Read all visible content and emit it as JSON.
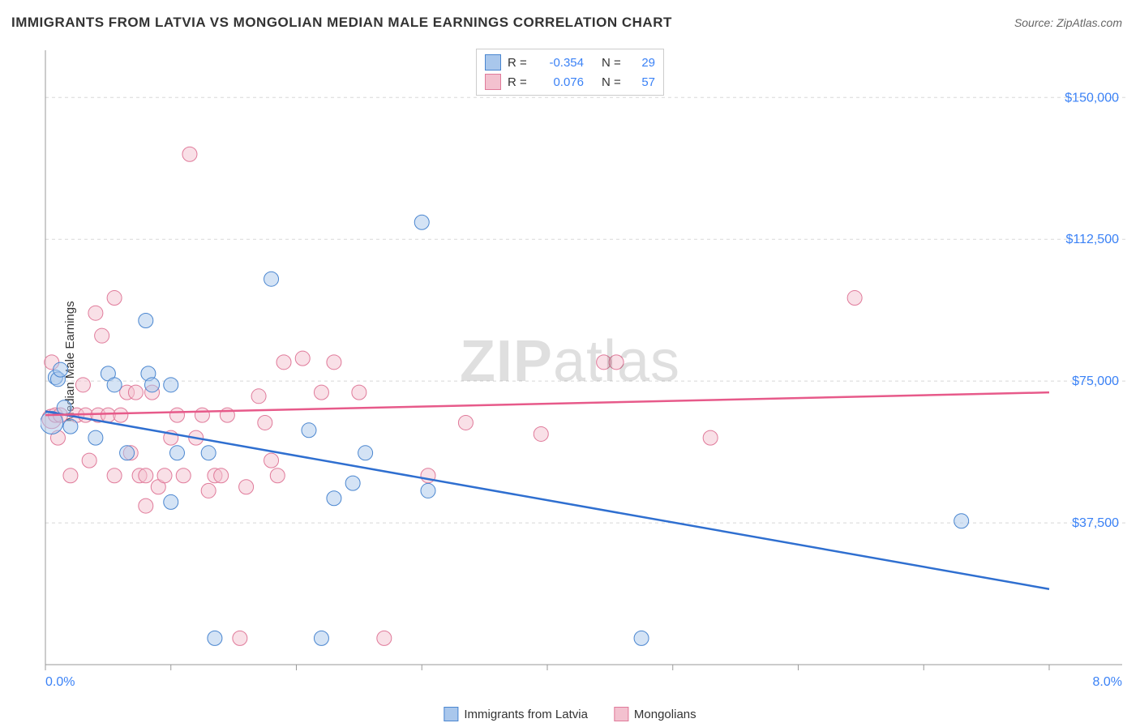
{
  "title": "IMMIGRANTS FROM LATVIA VS MONGOLIAN MEDIAN MALE EARNINGS CORRELATION CHART",
  "source_prefix": "Source: ",
  "source_name": "ZipAtlas.com",
  "ylabel": "Median Male Earnings",
  "watermark": "ZIPatlas",
  "chart": {
    "type": "scatter",
    "background_color": "#ffffff",
    "grid_color": "#d8d8d8",
    "grid_dash": "4 4",
    "axis_color": "#9a9a9a",
    "xlim": [
      0,
      8
    ],
    "ylim": [
      0,
      162500
    ],
    "y_gridlines": [
      37500,
      75000,
      112500,
      150000
    ],
    "y_tick_labels": [
      "$37,500",
      "$75,000",
      "$112,500",
      "$150,000"
    ],
    "x_tick_positions": [
      0,
      1,
      2,
      3,
      4,
      5,
      6,
      7,
      8
    ],
    "x_start_label": "0.0%",
    "x_end_label": "8.0%",
    "marker_radius": 9,
    "marker_opacity": 0.5,
    "series": [
      {
        "name": "Immigrants from Latvia",
        "color_fill": "#a9c7ec",
        "color_stroke": "#4a86d0",
        "line_color": "#2f6fd0",
        "line_width": 2.5,
        "r_value": "-0.354",
        "n_value": "29",
        "reg_y_start": 67000,
        "reg_y_end": 20000,
        "points": [
          [
            0.05,
            64000,
            14
          ],
          [
            0.08,
            76000,
            9
          ],
          [
            0.1,
            75500,
            9
          ],
          [
            0.12,
            78000,
            9
          ],
          [
            0.15,
            68000,
            9
          ],
          [
            0.2,
            63000,
            9
          ],
          [
            0.4,
            60000,
            9
          ],
          [
            0.5,
            77000,
            9
          ],
          [
            0.55,
            74000,
            9
          ],
          [
            0.65,
            56000,
            9
          ],
          [
            0.8,
            91000,
            9
          ],
          [
            0.82,
            77000,
            9
          ],
          [
            0.85,
            74000,
            9
          ],
          [
            1.0,
            74000,
            9
          ],
          [
            1.05,
            56000,
            9
          ],
          [
            1.0,
            43000,
            9
          ],
          [
            1.3,
            56000,
            9
          ],
          [
            1.35,
            7000,
            9
          ],
          [
            1.8,
            102000,
            9
          ],
          [
            2.1,
            62000,
            9
          ],
          [
            2.2,
            7000,
            9
          ],
          [
            2.3,
            44000,
            9
          ],
          [
            2.45,
            48000,
            9
          ],
          [
            2.55,
            56000,
            9
          ],
          [
            3.0,
            117000,
            9
          ],
          [
            3.05,
            46000,
            9
          ],
          [
            4.75,
            7000,
            9
          ],
          [
            7.3,
            38000,
            9
          ]
        ]
      },
      {
        "name": "Mongolians",
        "color_fill": "#f3c1cf",
        "color_stroke": "#e07a9a",
        "line_color": "#e75a8a",
        "line_width": 2.5,
        "r_value": "0.076",
        "n_value": "57",
        "reg_y_start": 66000,
        "reg_y_end": 72000,
        "points": [
          [
            0.05,
            80000,
            9
          ],
          [
            0.05,
            65000,
            12
          ],
          [
            0.08,
            66000,
            9
          ],
          [
            0.1,
            60000,
            9
          ],
          [
            0.12,
            66000,
            9
          ],
          [
            0.2,
            50000,
            9
          ],
          [
            0.25,
            66000,
            9
          ],
          [
            0.3,
            74000,
            9
          ],
          [
            0.32,
            66000,
            9
          ],
          [
            0.35,
            54000,
            9
          ],
          [
            0.4,
            93000,
            9
          ],
          [
            0.42,
            66000,
            9
          ],
          [
            0.45,
            87000,
            9
          ],
          [
            0.5,
            66000,
            9
          ],
          [
            0.55,
            50000,
            9
          ],
          [
            0.55,
            97000,
            9
          ],
          [
            0.6,
            66000,
            9
          ],
          [
            0.65,
            72000,
            9
          ],
          [
            0.68,
            56000,
            9
          ],
          [
            0.72,
            72000,
            9
          ],
          [
            0.75,
            50000,
            9
          ],
          [
            0.8,
            50000,
            9
          ],
          [
            0.8,
            42000,
            9
          ],
          [
            0.85,
            72000,
            9
          ],
          [
            0.9,
            47000,
            9
          ],
          [
            0.95,
            50000,
            9
          ],
          [
            1.0,
            60000,
            9
          ],
          [
            1.05,
            66000,
            9
          ],
          [
            1.1,
            50000,
            9
          ],
          [
            1.15,
            135000,
            9
          ],
          [
            1.2,
            60000,
            9
          ],
          [
            1.25,
            66000,
            9
          ],
          [
            1.3,
            46000,
            9
          ],
          [
            1.35,
            50000,
            9
          ],
          [
            1.4,
            50000,
            9
          ],
          [
            1.45,
            66000,
            9
          ],
          [
            1.55,
            7000,
            9
          ],
          [
            1.6,
            47000,
            9
          ],
          [
            1.7,
            71000,
            9
          ],
          [
            1.75,
            64000,
            9
          ],
          [
            1.8,
            54000,
            9
          ],
          [
            1.85,
            50000,
            9
          ],
          [
            1.9,
            80000,
            9
          ],
          [
            2.05,
            81000,
            9
          ],
          [
            2.2,
            72000,
            9
          ],
          [
            2.3,
            80000,
            9
          ],
          [
            2.5,
            72000,
            9
          ],
          [
            2.7,
            7000,
            9
          ],
          [
            3.05,
            50000,
            9
          ],
          [
            3.35,
            64000,
            9
          ],
          [
            3.95,
            61000,
            9
          ],
          [
            4.45,
            80000,
            9
          ],
          [
            4.55,
            80000,
            9
          ],
          [
            5.3,
            60000,
            9
          ],
          [
            6.45,
            97000,
            9
          ]
        ]
      }
    ],
    "bottom_legend": [
      {
        "label": "Immigrants from Latvia",
        "fill": "#a9c7ec",
        "stroke": "#4a86d0"
      },
      {
        "label": "Mongolians",
        "fill": "#f3c1cf",
        "stroke": "#e07a9a"
      }
    ],
    "stats_box": {
      "r_label": "R =",
      "n_label": "N ="
    }
  }
}
